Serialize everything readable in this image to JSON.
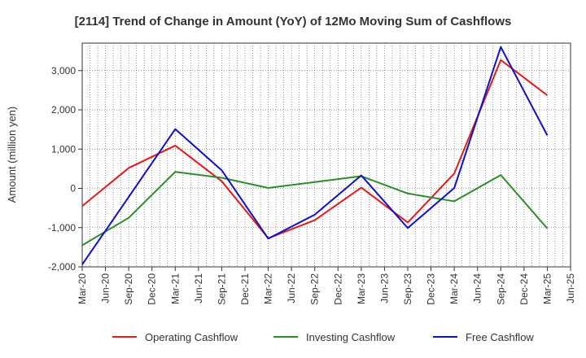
{
  "chart_data": {
    "type": "line",
    "title": "[2114]  Trend of Change in Amount (YoY) of 12Mo Moving Sum of Cashflows",
    "xlabel": "",
    "ylabel": "Amount (million yen)",
    "ylim": [
      -2000,
      3700
    ],
    "yticks": [
      -2000,
      -1000,
      0,
      1000,
      2000,
      3000
    ],
    "ytick_labels": [
      "-2,000",
      "-1,000",
      "0",
      "1,000",
      "2,000",
      "3,000"
    ],
    "categories": [
      "Mar-20",
      "Jun-20",
      "Sep-20",
      "Dec-20",
      "Mar-21",
      "Jun-21",
      "Sep-21",
      "Dec-21",
      "Mar-22",
      "Jun-22",
      "Sep-22",
      "Dec-22",
      "Mar-23",
      "Jun-23",
      "Sep-23",
      "Dec-23",
      "Mar-24",
      "Jun-24",
      "Sep-24",
      "Dec-24",
      "Mar-25",
      "Jun-25"
    ],
    "grid": true,
    "legend_position": "bottom",
    "series": [
      {
        "name": "Operating Cashflow",
        "color": "#e41a1c",
        "values": [
          -450,
          null,
          520,
          null,
          1090,
          null,
          180,
          null,
          -1270,
          null,
          -810,
          null,
          20,
          null,
          -870,
          null,
          380,
          null,
          3270,
          null,
          2370,
          null
        ]
      },
      {
        "name": "Investing Cashflow",
        "color": "#2e8b2e",
        "values": [
          -1450,
          null,
          -750,
          null,
          420,
          null,
          270,
          null,
          10,
          null,
          160,
          null,
          310,
          null,
          -130,
          null,
          -330,
          null,
          340,
          null,
          -1020,
          null
        ]
      },
      {
        "name": "Free Cashflow",
        "color": "#1010c8",
        "values": [
          -1940,
          null,
          -220,
          null,
          1510,
          null,
          460,
          null,
          -1280,
          null,
          -670,
          null,
          330,
          null,
          -1010,
          null,
          10,
          null,
          3600,
          null,
          1350,
          null
        ]
      }
    ]
  }
}
